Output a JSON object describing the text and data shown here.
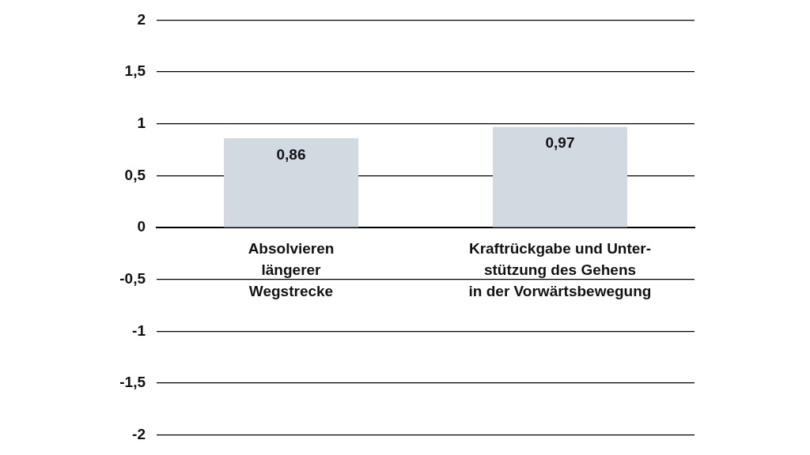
{
  "chart_data": {
    "type": "bar",
    "categories": [
      "Absolvieren\nlängerer\nWegstrecke",
      "Kraftrückgabe und Unter-\nstützung des Gehens\nin der Vorwärtsbewegung"
    ],
    "values": [
      0.86,
      0.97
    ],
    "value_labels": [
      "0,86",
      "0,97"
    ],
    "color": "#d1d9e1",
    "ylim": [
      -2,
      2
    ],
    "yticks": [
      -2,
      {
        "value": -1.5,
        "label": "-1,5"
      },
      -1,
      {
        "value": -0.5,
        "label": "-0,5"
      },
      0,
      {
        "value": 0.5,
        "label": "0,5"
      },
      1,
      {
        "value": 1.5,
        "label": "1,5"
      },
      2
    ],
    "grid": "y",
    "legend": false
  }
}
